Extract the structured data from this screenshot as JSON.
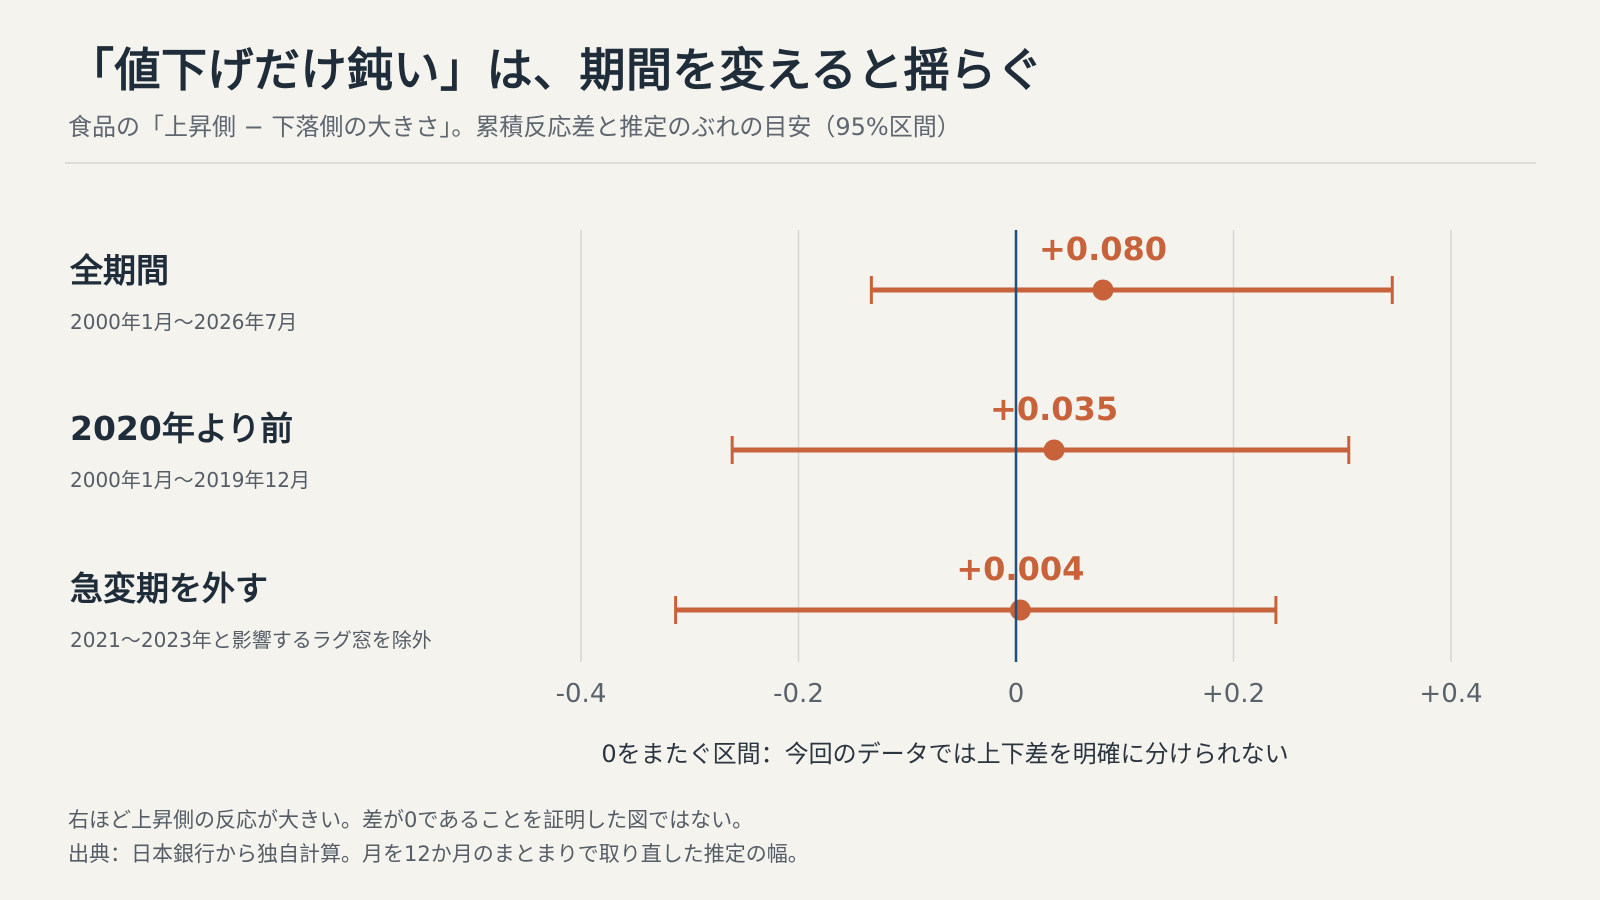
{
  "title": "「値下げだけ鈍い」は、期間を変えると揺らぐ",
  "subtitle": "食品の「上昇側 − 下落側の大きさ」。累積反応差と推定のぶれの目安（95%区間）",
  "zero_note": "0をまたぐ区間：今回のデータでは上下差を明確に分けられない",
  "footnotes": [
    "右ほど上昇側の反応が大きい。差が0であることを証明した図ではない。",
    "出典：日本銀行から独自計算。月を12か月のまとまりで取り直した推定の幅。"
  ],
  "colors": {
    "background": "#f4f3ee",
    "accent": "#c8623a",
    "zero_line": "#1f4f7a",
    "grid": "#d6d6d6"
  },
  "chart_data": {
    "type": "forest",
    "xlim": [
      -0.4,
      0.4
    ],
    "x_ticks": [
      -0.4,
      -0.2,
      0,
      0.2,
      0.4
    ],
    "x_tick_labels": [
      "-0.4",
      "-0.2",
      "0",
      "+0.2",
      "+0.4"
    ],
    "reference_line": 0,
    "grid": true,
    "rows": [
      {
        "label": "全期間",
        "sublabel": "2000年1月〜2026年7月",
        "estimate": 0.08,
        "estimate_label": "+0.080",
        "lower": -0.133,
        "upper": 0.346
      },
      {
        "label": "2020年より前",
        "sublabel": "2000年1月〜2019年12月",
        "estimate": 0.035,
        "estimate_label": "+0.035",
        "lower": -0.261,
        "upper": 0.306
      },
      {
        "label": "急変期を外す",
        "sublabel": "2021〜2023年と影響するラグ窓を除外",
        "estimate": 0.004,
        "estimate_label": "+0.004",
        "lower": -0.313,
        "upper": 0.239
      }
    ]
  }
}
